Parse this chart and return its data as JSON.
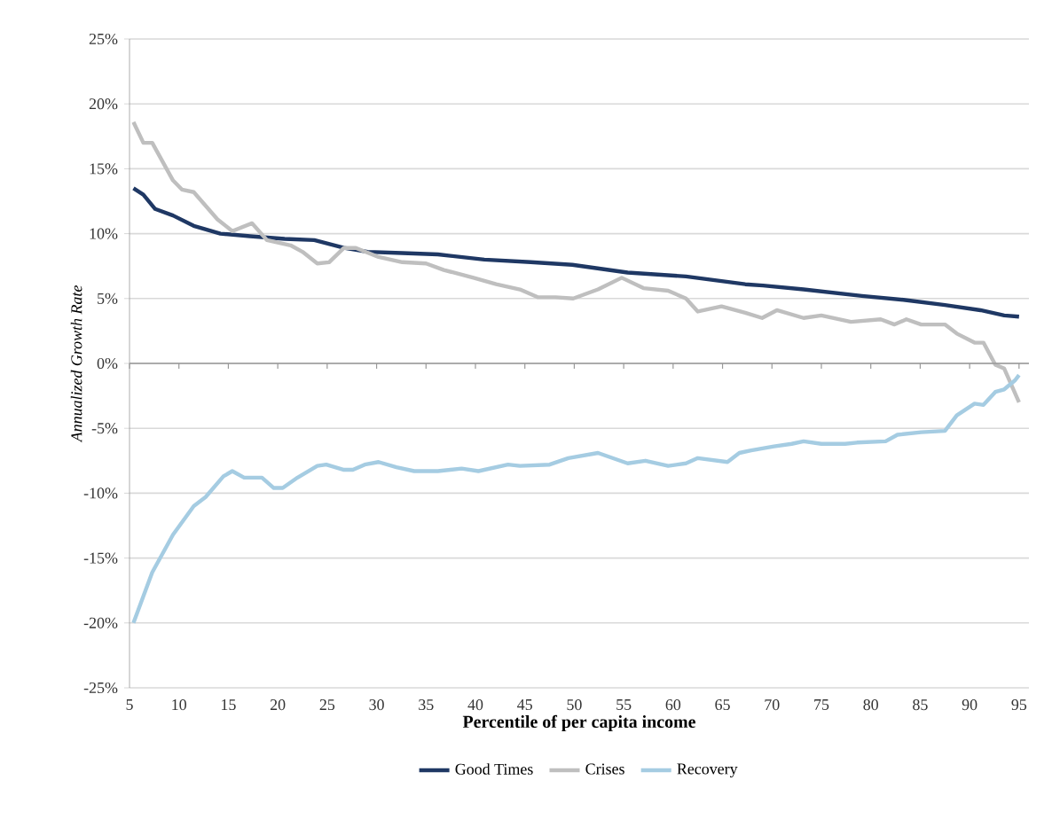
{
  "chart_data": {
    "type": "line",
    "xlabel": "Percentile of per capita income",
    "ylabel": "Annualized Growth Rate",
    "series": [
      {
        "name": "Good Times",
        "color": "#1f3864",
        "x": [
          5.4,
          6.4,
          7.6,
          9.4,
          11.5,
          14.2,
          17.2,
          20.7,
          23.7,
          26.7,
          29.1,
          32.6,
          36.2,
          40.9,
          45.6,
          49.8,
          55.4,
          61.3,
          67.3,
          69.1,
          73.2,
          79.1,
          83.3,
          87.5,
          91.1,
          93.5,
          95
        ],
        "values": [
          13.5,
          13.0,
          11.9,
          11.4,
          10.6,
          10.0,
          9.8,
          9.6,
          9.5,
          8.9,
          8.6,
          8.5,
          8.4,
          8.0,
          7.8,
          7.6,
          7.0,
          6.7,
          6.1,
          6.0,
          5.7,
          5.2,
          4.9,
          4.5,
          4.1,
          3.7,
          3.6
        ]
      },
      {
        "name": "Crises",
        "color": "#bfbfbf",
        "x": [
          5.4,
          6.4,
          7.3,
          9.4,
          10.3,
          11.5,
          13.9,
          15.4,
          17.4,
          18.9,
          21.3,
          22.5,
          24,
          25.2,
          26.7,
          27.9,
          30.2,
          32.6,
          35,
          36.8,
          39.8,
          42.1,
          44.5,
          46.3,
          48.1,
          49.9,
          52.4,
          54.8,
          57,
          59.5,
          61.3,
          62.5,
          64.9,
          67.3,
          69,
          70.5,
          73.2,
          75,
          78,
          81,
          82.4,
          83.6,
          85.1,
          87.5,
          88.7,
          90.5,
          91.4,
          92.6,
          93.5,
          95
        ],
        "values": [
          18.6,
          17.0,
          17.0,
          14.1,
          13.4,
          13.2,
          11.1,
          10.2,
          10.8,
          9.5,
          9.1,
          8.6,
          7.7,
          7.8,
          8.9,
          8.9,
          8.2,
          7.8,
          7.7,
          7.2,
          6.6,
          6.1,
          5.7,
          5.1,
          5.1,
          5.0,
          5.7,
          6.6,
          5.8,
          5.6,
          5.0,
          4.0,
          4.4,
          3.9,
          3.5,
          4.1,
          3.5,
          3.7,
          3.2,
          3.4,
          3.0,
          3.4,
          3.0,
          3.0,
          2.3,
          1.6,
          1.6,
          -0.1,
          -0.4,
          -3.0
        ]
      },
      {
        "name": "Recovery",
        "color": "#a5cce2",
        "x": [
          5.4,
          7.3,
          9.4,
          11.5,
          12.7,
          14.5,
          15.4,
          16.6,
          18.4,
          19.6,
          20.5,
          22,
          24,
          24.9,
          26.7,
          27.6,
          28.8,
          30.2,
          32,
          33.8,
          36.2,
          38.6,
          40.3,
          43.3,
          44.5,
          47.5,
          49.4,
          52.4,
          55.4,
          57.2,
          59.5,
          61.3,
          62.5,
          65.5,
          66.7,
          67.9,
          70.2,
          72,
          73.2,
          75,
          77.4,
          78.6,
          81.5,
          82.7,
          85.1,
          87.5,
          88.7,
          90.5,
          91.4,
          92.6,
          93.5,
          94.6,
          95
        ],
        "values": [
          -20.0,
          -16.1,
          -13.2,
          -11.0,
          -10.3,
          -8.7,
          -8.3,
          -8.8,
          -8.8,
          -9.6,
          -9.6,
          -8.8,
          -7.9,
          -7.8,
          -8.2,
          -8.2,
          -7.8,
          -7.6,
          -8.0,
          -8.3,
          -8.3,
          -8.1,
          -8.3,
          -7.8,
          -7.9,
          -7.8,
          -7.3,
          -6.9,
          -7.7,
          -7.5,
          -7.9,
          -7.7,
          -7.3,
          -7.6,
          -6.9,
          -6.7,
          -6.4,
          -6.2,
          -6.0,
          -6.2,
          -6.2,
          -6.1,
          -6.0,
          -5.5,
          -5.3,
          -5.2,
          -4.0,
          -3.1,
          -3.2,
          -2.2,
          -2.0,
          -1.3,
          -0.9
        ]
      }
    ],
    "xlim": [
      5,
      96
    ],
    "ylim": [
      -25,
      25
    ],
    "xticks": [
      5,
      10,
      15,
      20,
      25,
      30,
      35,
      40,
      45,
      50,
      55,
      60,
      65,
      70,
      75,
      80,
      85,
      90,
      95
    ],
    "yticks": [
      {
        "value": -25,
        "label": "-25%"
      },
      {
        "value": -20,
        "label": "-20%"
      },
      {
        "value": -15,
        "label": "-15%"
      },
      {
        "value": -10,
        "label": "-10%"
      },
      {
        "value": -5,
        "label": "-5%"
      },
      {
        "value": 0,
        "label": "0%"
      },
      {
        "value": 5,
        "label": "5%"
      },
      {
        "value": 10,
        "label": "10%"
      },
      {
        "value": 15,
        "label": "15%"
      },
      {
        "value": 20,
        "label": "20%"
      },
      {
        "value": 25,
        "label": "25%"
      }
    ],
    "grid": "y",
    "legend": "bottom"
  }
}
